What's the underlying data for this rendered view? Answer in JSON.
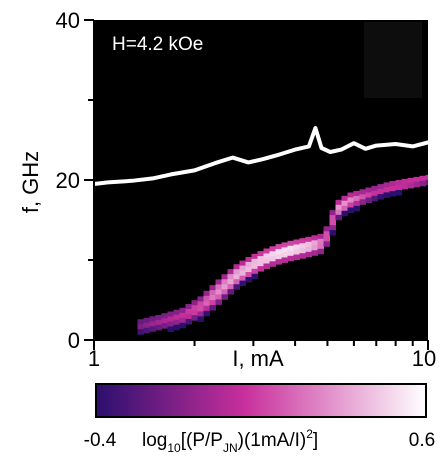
{
  "chart_data": {
    "type": "heatmap",
    "annotation": "H=4.2 kOe",
    "xlabel": "I, mA",
    "ylabel": "f, GHz",
    "x_scale": "log",
    "xlim": [
      1,
      10
    ],
    "ylim": [
      0,
      40
    ],
    "x_ticks": [
      "1",
      "10"
    ],
    "y_ticks": [
      "0",
      "20",
      "40"
    ],
    "colorbar": {
      "min_label": "-0.4",
      "max_label": "0.6",
      "label": "log",
      "label_sub": "10",
      "label_rest_a": "[(P/P",
      "label_rest_sub": "JN",
      "label_rest_b": ")(1mA/I)",
      "label_sup": "2",
      "label_end": "] ",
      "range": [
        -0.4,
        0.6
      ],
      "colors": [
        "#2a0f6e",
        "#c82f9c",
        "#ffffff"
      ]
    },
    "series": [
      {
        "kind": "line",
        "color": "#ffffff",
        "x": [
          1.0,
          1.1,
          1.3,
          1.5,
          1.7,
          2.0,
          2.3,
          2.6,
          2.9,
          3.2,
          3.6,
          4.0,
          4.4,
          4.6,
          4.8,
          5.1,
          5.5,
          6.0,
          6.5,
          7.0,
          8.0,
          9.0,
          10.0
        ],
        "y": [
          19.5,
          19.7,
          19.9,
          20.2,
          20.7,
          21.2,
          22.1,
          22.8,
          22.2,
          22.6,
          23.2,
          23.8,
          24.2,
          26.5,
          24.0,
          23.5,
          23.8,
          24.6,
          23.9,
          24.3,
          24.5,
          24.2,
          24.7
        ]
      },
      {
        "kind": "band",
        "x": [
          1.35,
          1.55,
          1.8,
          2.05,
          2.3,
          2.6,
          2.9,
          3.2,
          3.5,
          3.8,
          4.1,
          4.4,
          4.8,
          5.0,
          5.3,
          5.7,
          6.2,
          6.8,
          7.5,
          8.5,
          10.0
        ],
        "y": [
          1.8,
          2.3,
          3.0,
          4.2,
          6.0,
          8.0,
          9.3,
          10.2,
          10.8,
          11.2,
          11.5,
          11.8,
          12.2,
          14.5,
          16.5,
          17.4,
          17.9,
          18.5,
          19.1,
          19.6,
          20.2
        ],
        "width": [
          1.6,
          1.8,
          2.0,
          2.6,
          3.0,
          2.8,
          2.6,
          2.4,
          2.4,
          2.4,
          2.4,
          2.4,
          2.4,
          2.6,
          2.2,
          2.0,
          1.8,
          1.6,
          1.4,
          1.2,
          1.0
        ],
        "intensity": [
          0.25,
          0.35,
          0.45,
          0.55,
          0.7,
          0.8,
          0.85,
          0.9,
          0.95,
          0.95,
          0.9,
          0.85,
          0.6,
          0.5,
          0.75,
          0.7,
          0.55,
          0.45,
          0.5,
          0.55,
          0.5
        ]
      }
    ]
  }
}
